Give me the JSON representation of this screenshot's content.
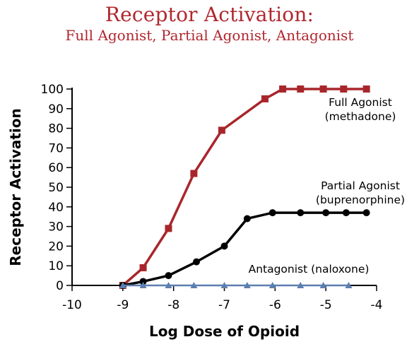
{
  "chart_data": {
    "type": "line",
    "title": "Receptor Activation:",
    "subtitle": "Full Agonist, Partial Agonist, Antagonist",
    "xlabel": "Log Dose of Opioid",
    "ylabel": "Receptor Activation",
    "xlim": [
      -10,
      -4
    ],
    "ylim": [
      0,
      100
    ],
    "xticks": [
      -10,
      -9,
      -8,
      -7,
      -6,
      -5,
      -4
    ],
    "yticks": [
      0,
      10,
      20,
      30,
      40,
      50,
      60,
      70,
      80,
      90,
      100
    ],
    "grid": false,
    "series": [
      {
        "name": "Full Agonist",
        "label_lines": [
          "Full Agonist",
          "(methadone)"
        ],
        "color": "#a8262b",
        "marker": "square",
        "x": [
          -9.0,
          -8.6,
          -8.1,
          -7.6,
          -7.05,
          -6.2,
          -5.85,
          -5.5,
          -5.05,
          -4.65,
          -4.2
        ],
        "y": [
          0,
          9,
          29,
          57,
          79,
          95,
          100,
          100,
          100,
          100,
          100
        ]
      },
      {
        "name": "Partial Agonist",
        "label_lines": [
          "Partial Agonist",
          "(buprenorphine)"
        ],
        "color": "#000000",
        "marker": "circle",
        "x": [
          -9.0,
          -8.6,
          -8.1,
          -7.55,
          -7.0,
          -6.55,
          -6.05,
          -5.5,
          -5.0,
          -4.6,
          -4.2
        ],
        "y": [
          0,
          2,
          5,
          12,
          20,
          34,
          37,
          37,
          37,
          37,
          37
        ]
      },
      {
        "name": "Antagonist (naloxone)",
        "label_lines": [
          "Antagonist (naloxone)"
        ],
        "color": "#5b7fb0",
        "marker": "triangle",
        "x": [
          -9.0,
          -8.6,
          -8.1,
          -7.6,
          -7.0,
          -6.55,
          -6.05,
          -5.5,
          -5.05,
          -4.55
        ],
        "y": [
          0,
          0,
          0,
          0,
          0,
          0,
          0,
          0,
          0,
          0
        ]
      }
    ]
  }
}
